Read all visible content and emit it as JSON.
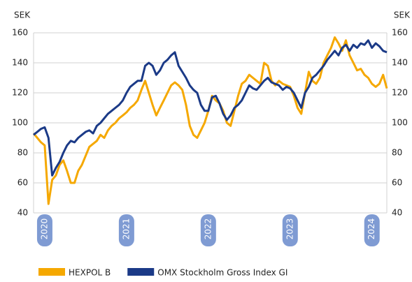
{
  "chart_data": {
    "type": "line",
    "y_label": "SEK",
    "y2_label": "SEK",
    "categories": [
      null,
      null,
      null,
      "2020",
      null,
      null,
      null,
      null,
      null,
      null,
      null,
      null,
      null,
      null,
      null,
      null,
      null,
      null,
      null,
      null,
      null,
      null,
      null,
      null,
      null,
      "2021",
      null,
      null,
      null,
      null,
      null,
      null,
      null,
      null,
      null,
      null,
      null,
      null,
      null,
      null,
      null,
      null,
      null,
      null,
      null,
      null,
      null,
      "2022",
      null,
      null,
      null,
      null,
      null,
      null,
      null,
      null,
      null,
      null,
      null,
      null,
      null,
      null,
      null,
      null,
      null,
      null,
      null,
      null,
      null,
      "2023",
      null,
      null,
      null,
      null,
      null,
      null,
      null,
      null,
      null,
      null,
      null,
      null,
      null,
      null,
      null,
      null,
      null,
      null,
      null,
      null,
      null,
      "2024",
      null,
      null,
      null,
      null
    ],
    "series": [
      {
        "name": "HEXPOL B",
        "color": "#f5a800",
        "values": [
          93,
          90,
          87,
          85,
          46,
          62,
          65,
          72,
          75,
          68,
          60,
          60,
          68,
          72,
          78,
          84,
          86,
          88,
          92,
          90,
          95,
          98,
          100,
          103,
          105,
          107,
          110,
          112,
          115,
          122,
          128,
          120,
          112,
          105,
          110,
          115,
          120,
          125,
          127,
          125,
          122,
          112,
          98,
          92,
          90,
          95,
          100,
          108,
          118,
          115,
          113,
          108,
          100,
          98,
          108,
          118,
          126,
          128,
          132,
          130,
          128,
          126,
          140,
          138,
          128,
          125,
          128,
          126,
          125,
          124,
          118,
          110,
          106,
          120,
          134,
          128,
          126,
          130,
          140,
          145,
          150,
          157,
          153,
          148,
          155,
          145,
          140,
          135,
          136,
          132,
          130,
          126,
          124,
          126,
          132,
          123
        ]
      },
      {
        "name": "OMX Stockholm Gross Index GI",
        "color": "#1b3a87",
        "values": [
          92,
          94,
          96,
          97,
          90,
          65,
          70,
          74,
          80,
          85,
          88,
          87,
          90,
          92,
          94,
          95,
          93,
          98,
          100,
          103,
          106,
          108,
          110,
          112,
          115,
          120,
          124,
          126,
          128,
          128,
          138,
          140,
          138,
          132,
          135,
          140,
          142,
          145,
          147,
          138,
          134,
          130,
          125,
          122,
          120,
          112,
          108,
          108,
          117,
          118,
          113,
          106,
          102,
          105,
          110,
          112,
          115,
          120,
          125,
          123,
          122,
          125,
          128,
          130,
          127,
          126,
          125,
          122,
          124,
          123,
          120,
          115,
          110,
          120,
          124,
          130,
          132,
          135,
          138,
          142,
          145,
          148,
          145,
          150,
          152,
          148,
          152,
          150,
          153,
          152,
          155,
          150,
          153,
          151,
          148,
          147
        ]
      }
    ],
    "ylim": [
      40,
      160
    ],
    "yticks": [
      40,
      60,
      80,
      100,
      120,
      140,
      160
    ],
    "y2lim": [
      40,
      160
    ],
    "y2ticks": [
      40,
      60,
      80,
      100,
      120,
      140,
      160
    ],
    "grid": true
  }
}
